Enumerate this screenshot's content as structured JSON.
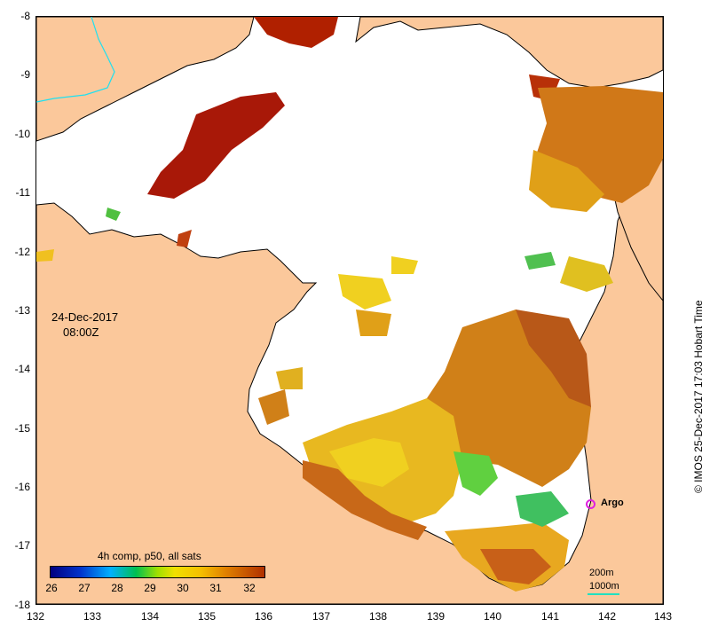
{
  "map": {
    "lat_labels": [
      "-8",
      "-9",
      "-10",
      "-11",
      "-12",
      "-13",
      "-14",
      "-15",
      "-16",
      "-17",
      "-18"
    ],
    "lon_labels": [
      "132",
      "133",
      "134",
      "135",
      "136",
      "137",
      "138",
      "139",
      "140",
      "141",
      "142",
      "143"
    ],
    "colors": {
      "land": "#fbc89b",
      "ocean": "#ffffff",
      "coast": "#000000",
      "river": "#1ee0f0"
    }
  },
  "annotation": {
    "date": "24-Dec-2017",
    "time": "08:00Z"
  },
  "legend": {
    "title": "4h comp, p50, all sats",
    "ticks": [
      "26",
      "27",
      "28",
      "29",
      "30",
      "31",
      "32"
    ],
    "colors": [
      "#000080",
      "#0033cc",
      "#00b0ff",
      "#00c050",
      "#a0e000",
      "#f0e000",
      "#f5c000",
      "#e08000",
      "#b03000"
    ]
  },
  "marker": {
    "label": "Argo",
    "color": "#e020e0"
  },
  "isobaths": {
    "shallow": "200m",
    "deep": "1000m",
    "color": "#20e0c0"
  },
  "credit": "©  IMOS 25-Dec-2017 17:03 Hobart Time"
}
